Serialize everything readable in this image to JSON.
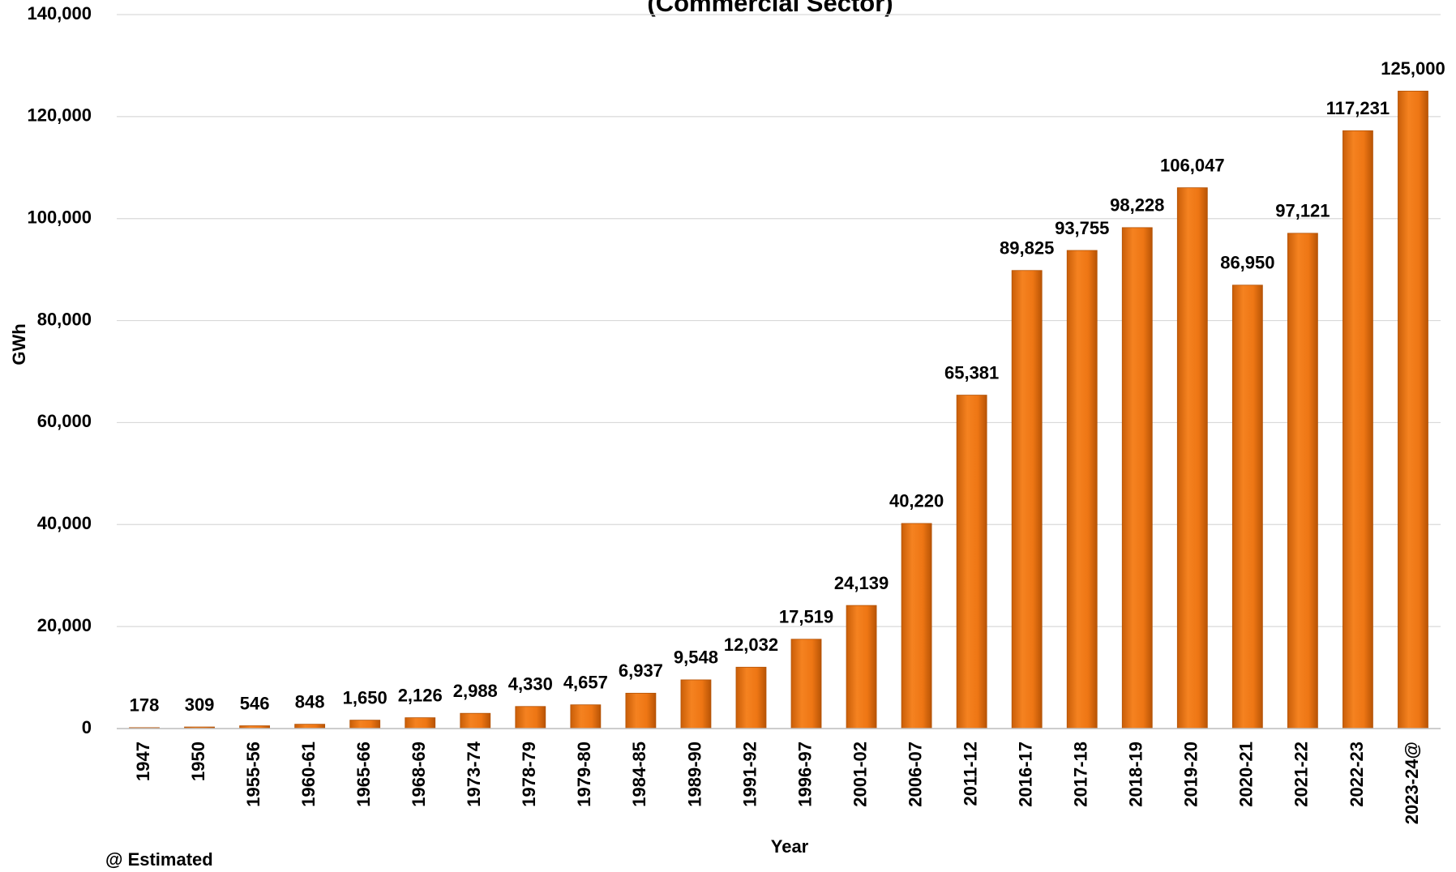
{
  "chart_data": {
    "type": "bar",
    "title": "(Commercial Sector)",
    "x_label": "Year",
    "y_label": "GWh",
    "note": "@ Estimated",
    "categories": [
      "1947",
      "1950",
      "1955-56",
      "1960-61",
      "1965-66",
      "1968-69",
      "1973-74",
      "1978-79",
      "1979-80",
      "1984-85",
      "1989-90",
      "1991-92",
      "1996-97",
      "2001-02",
      "2006-07",
      "2011-12",
      "2016-17",
      "2017-18",
      "2018-19",
      "2019-20",
      "2020-21",
      "2021-22",
      "2022-23",
      "2023-24@"
    ],
    "values": [
      178,
      309,
      546,
      848,
      1650,
      2126,
      2988,
      4330,
      4657,
      6937,
      9548,
      12032,
      17519,
      24139,
      40220,
      65381,
      89825,
      93755,
      98228,
      106047,
      86950,
      97121,
      117231,
      125000
    ],
    "value_labels": [
      "178",
      "309",
      "546",
      "848",
      "1,650",
      "2,126",
      "2,988",
      "4,330",
      "4,657",
      "6,937",
      "9,548",
      "12,032",
      "17,519",
      "24,139",
      "40,220",
      "65,381",
      "89,825",
      "93,755",
      "98,228",
      "106,047",
      "86,950",
      "97,121",
      "117,231",
      "125,000"
    ],
    "color": "#ed7512",
    "ylim": [
      0,
      140000
    ],
    "yticks": [
      0,
      {
        "value": 20000,
        "label": "20,000"
      },
      {
        "value": 40000,
        "label": "40,000"
      },
      {
        "value": 60000,
        "label": "60,000"
      },
      {
        "value": 80000,
        "label": "80,000"
      },
      {
        "value": 100000,
        "label": "100,000"
      },
      {
        "value": 120000,
        "label": "120,000"
      },
      {
        "value": 140000,
        "label": "140,000"
      }
    ],
    "grid": true
  }
}
